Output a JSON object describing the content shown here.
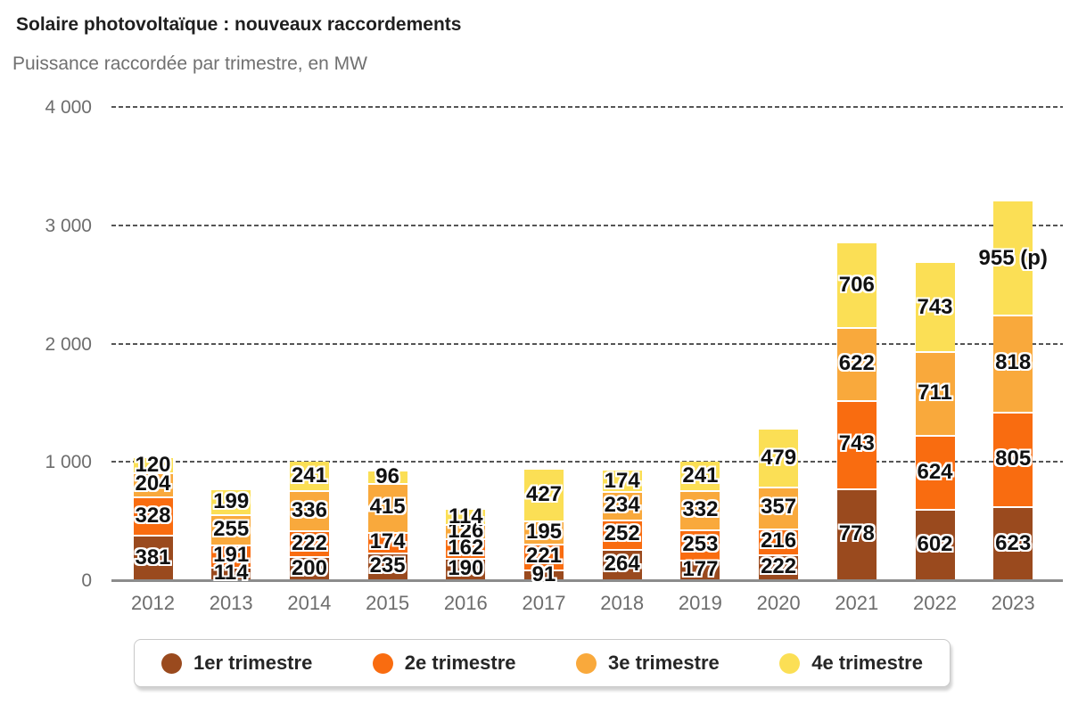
{
  "chart_data": {
    "type": "bar",
    "stacked": true,
    "title": "Solaire photovoltaïque : nouveaux raccordements",
    "subtitle": "Puissance raccordée par trimestre, en MW",
    "unit": "MW",
    "categories": [
      "2012",
      "2013",
      "2014",
      "2015",
      "2016",
      "2017",
      "2018",
      "2019",
      "2020",
      "2021",
      "2022",
      "2023"
    ],
    "series": [
      {
        "name": "1er trimestre",
        "color": "#9A4A1E",
        "values": [
          381,
          114,
          200,
          235,
          190,
          91,
          264,
          177,
          222,
          778,
          602,
          623
        ],
        "labels": [
          "381",
          "114",
          "200",
          "235",
          "190",
          "91",
          "264",
          "177",
          "222",
          "778",
          "602",
          "623"
        ]
      },
      {
        "name": "2e trimestre",
        "color": "#F96C10",
        "values": [
          328,
          191,
          222,
          174,
          162,
          221,
          252,
          253,
          216,
          743,
          624,
          805
        ],
        "labels": [
          "328",
          "191",
          "222",
          "174",
          "162",
          "221",
          "252",
          "253",
          "216",
          "743",
          "624",
          "805"
        ]
      },
      {
        "name": "3e trimestre",
        "color": "#F9A93C",
        "values": [
          204,
          255,
          336,
          415,
          126,
          195,
          234,
          332,
          357,
          622,
          711,
          818
        ],
        "labels": [
          "204",
          "255",
          "336",
          "415",
          "126",
          "195",
          "234",
          "332",
          "357",
          "622",
          "711",
          "818"
        ]
      },
      {
        "name": "4e trimestre",
        "color": "#FBDF55",
        "values": [
          120,
          199,
          241,
          96,
          114,
          427,
          174,
          241,
          479,
          706,
          743,
          955
        ],
        "labels": [
          "120",
          "199",
          "241",
          "96",
          "114",
          "427",
          "174",
          "241",
          "479",
          "706",
          "743",
          "955 (p)"
        ]
      }
    ],
    "ylim": [
      0,
      4000
    ],
    "yticks": [
      {
        "value": 0,
        "label": "0"
      },
      {
        "value": 1000,
        "label": "1 000"
      },
      {
        "value": 2000,
        "label": "2 000"
      },
      {
        "value": 3000,
        "label": "3 000"
      },
      {
        "value": 4000,
        "label": "4 000"
      }
    ],
    "grid": "horizontal-dashed",
    "legend_position": "bottom",
    "provisional_note": "(p)"
  }
}
